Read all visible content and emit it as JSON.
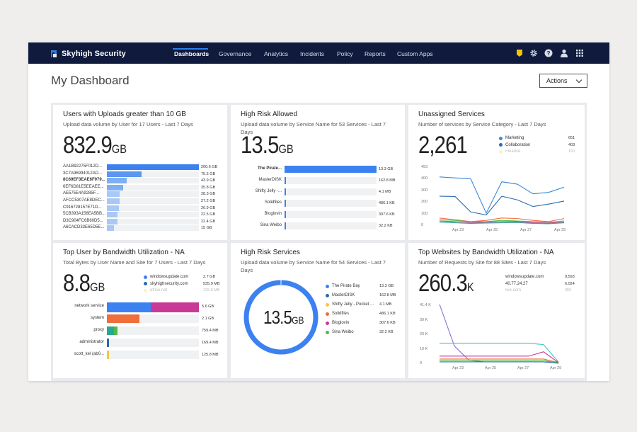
{
  "nav": {
    "brand": "Skyhigh Security",
    "items": [
      "Dashboards",
      "Governance",
      "Analytics",
      "Incidents",
      "Policy",
      "Reports",
      "Custom Apps"
    ],
    "active": "Dashboards"
  },
  "page": {
    "title": "My Dashboard",
    "actions_label": "Actions"
  },
  "colors": {
    "nav_bg": "#0f1a3d",
    "accent": "#2f7fe8",
    "badge": "#f5c400",
    "bar_blue": "#3b82f0",
    "bar_light": "#a9c8f5",
    "magenta": "#c83a96",
    "orange": "#ee6f3c",
    "teal": "#26a892",
    "green": "#55b949",
    "yellow": "#f6c643"
  },
  "cards": {
    "uploads": {
      "title": "Users with Uploads greater than 10 GB",
      "subtitle": "Upload data volume by User for 17 Users - Last 7 Days",
      "value": "832.9",
      "unit": "GB",
      "rows": [
        {
          "label": "AA1B92275F012D...",
          "value": "200.6 GB",
          "v": 200.6
        },
        {
          "label": "3C7A96994012AD...",
          "value": "75.5 GB",
          "v": 75.5
        },
        {
          "label": "8C69EF3EAE6F979...",
          "value": "43.9 GB",
          "v": 43.9
        },
        {
          "label": "6EF6D81E5EEAEE...",
          "value": "35.8 GB",
          "v": 35.8
        },
        {
          "label": "AE575E4A9285F...",
          "value": "28.3 GB",
          "v": 28.3
        },
        {
          "label": "AFCC5307AE8DEC...",
          "value": "27.2 GB",
          "v": 27.2
        },
        {
          "label": "C916728157E71D...",
          "value": "26.9 GB",
          "v": 26.9
        },
        {
          "label": "5CB393A156EA5BB...",
          "value": "22.5 GB",
          "v": 22.5
        },
        {
          "label": "D3C904FC6B60D5...",
          "value": "22.4 GB",
          "v": 22.4
        },
        {
          "label": "A6CACD33E65D5E...",
          "value": "15 GB",
          "v": 15
        }
      ]
    },
    "highrisk_allowed": {
      "title": "High Risk Allowed",
      "subtitle": "Upload data volume by Service Name for 53 Services - Last 7 Days",
      "value": "13.5",
      "unit": "GB",
      "rows": [
        {
          "label": "The Pirate...",
          "value": "13.3 GB",
          "v": 13.3
        },
        {
          "label": "MasterDISK",
          "value": "162.8 MB",
          "v": 0.16
        },
        {
          "label": "Shifty Jelly -...",
          "value": "4.1 MB",
          "v": 0.004
        },
        {
          "label": "Solidfiles",
          "value": "486.1 KB",
          "v": 0.0005
        },
        {
          "label": "Bloglovin",
          "value": "307.6 KB",
          "v": 0.0003
        },
        {
          "label": "Sina Weibo",
          "value": "32.2 KB",
          "v": 3e-05
        }
      ]
    },
    "unassigned": {
      "title": "Unassigned Services",
      "subtitle": "Number of services by Service Category - Last 7 Days",
      "value": "2,261",
      "legend": [
        {
          "name": "Marketing",
          "value": "651",
          "color": "#3b8ad6"
        },
        {
          "name": "Collaboration",
          "value": "403",
          "color": "#2b6cb0"
        },
        {
          "name": "Finance",
          "value": "150",
          "color": "#f6d77a"
        }
      ],
      "y_ticks": [
        "493",
        "400",
        "300",
        "200",
        "100",
        "0"
      ],
      "x_ticks": [
        "Apr 23",
        "Apr 25",
        "Apr 27",
        "Apr 29"
      ]
    },
    "bandwidth_user": {
      "title": "Top User by Bandwidth Utilization - NA",
      "subtitle": "Total Bytes by User Name and Site for 7 Users - Last 7 Days",
      "value": "8.8",
      "unit": "GB",
      "legend": [
        {
          "name": "windowsupdate.com",
          "value": "2.7 GB",
          "color": "#3b82f0"
        },
        {
          "name": "skyhighsecurity.com",
          "value": "535.9 MB",
          "color": "#2c6aa8"
        },
        {
          "name": "office.net",
          "value": "125.8 MB",
          "color": "#f6d77a"
        }
      ],
      "rows": [
        {
          "label": "network service",
          "value": "5.6 GB"
        },
        {
          "label": "system",
          "value": "2.1 GB"
        },
        {
          "label": "proxy",
          "value": "759.4 MB"
        },
        {
          "label": "administrator",
          "value": "169.4 MB"
        },
        {
          "label": "scott_kel (ab0...",
          "value": "125.8 MB"
        }
      ]
    },
    "highrisk_services": {
      "title": "High Risk Services",
      "subtitle": "Upload data volume by Service Name for 54 Services - Last 7 Days",
      "value": "13.5",
      "unit": "GB",
      "legend": [
        {
          "name": "The Pirate Bay",
          "value": "13.3 GB",
          "color": "#3b82f0"
        },
        {
          "name": "MasterDISK",
          "value": "162.8 MB",
          "color": "#2c6aa8"
        },
        {
          "name": "Shifty Jelly - Pocket ...",
          "value": "4.1 MB",
          "color": "#f6c643"
        },
        {
          "name": "Solidfiles",
          "value": "486.1 KB",
          "color": "#ee6f3c"
        },
        {
          "name": "Bloglovin",
          "value": "307.6 KB",
          "color": "#c83a96"
        },
        {
          "name": "Sina Weibo",
          "value": "32.2 KB",
          "color": "#55b949"
        }
      ]
    },
    "websites": {
      "title": "Top Websites by Bandwidth Utilization - NA",
      "subtitle": "Number of Requests by Site for 88 Sites - Last 7 Days",
      "value": "260.3",
      "unit": "K",
      "legend": [
        {
          "name": "windowsupdate.com",
          "value": "9,593"
        },
        {
          "name": "40.77.24.27",
          "value": "6,024"
        },
        {
          "name": "live.com",
          "value": "359"
        }
      ],
      "y_ticks": [
        "41.4 K",
        "30 K",
        "20 K",
        "10 K",
        "0"
      ],
      "x_ticks": [
        "Apr 23",
        "Apr 25",
        "Apr 27",
        "Apr 29"
      ]
    }
  }
}
